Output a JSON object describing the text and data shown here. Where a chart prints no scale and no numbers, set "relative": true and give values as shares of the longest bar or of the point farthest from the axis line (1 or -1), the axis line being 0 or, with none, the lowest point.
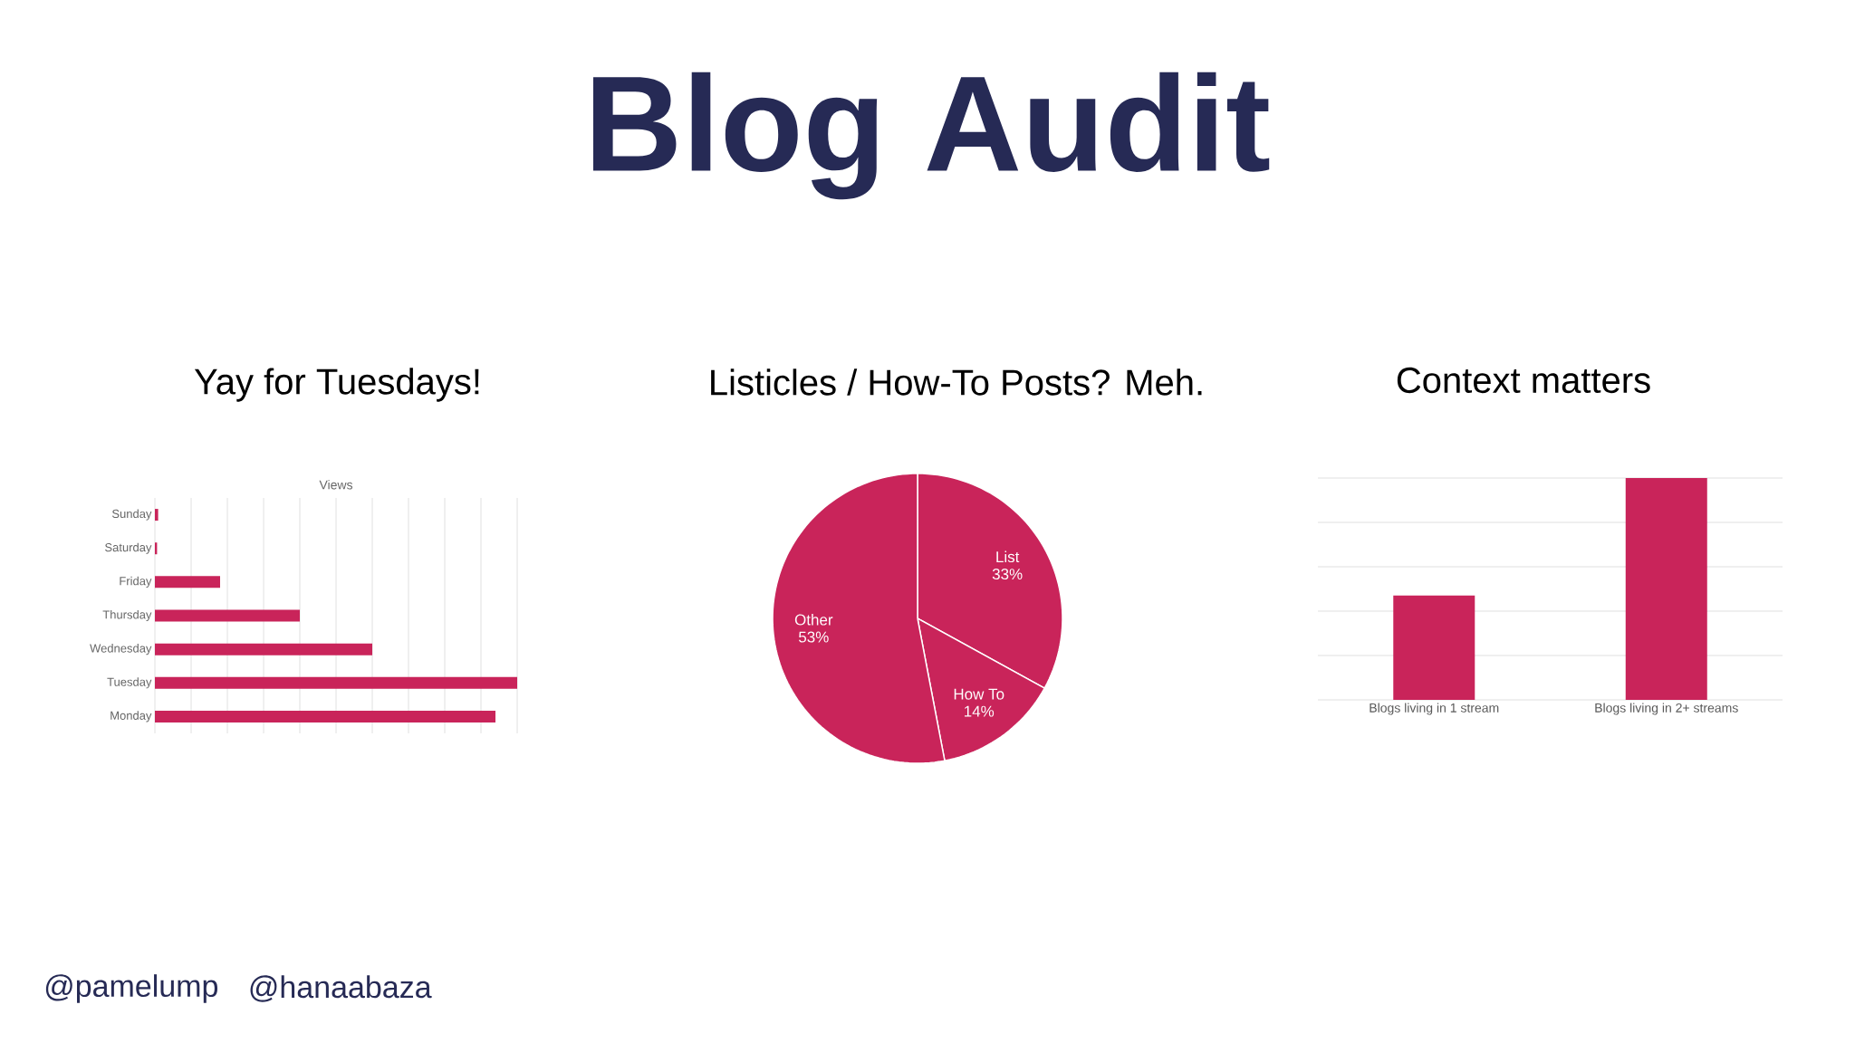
{
  "chart_data": [
    {
      "type": "other",
      "title": "Blog Audit",
      "annotations": [
        "@pamelump",
        "@hanaabaza"
      ]
    },
    {
      "type": "bar",
      "orientation": "horizontal",
      "relative": true,
      "title": "Yay for Tuesdays!",
      "xlabel": "Views",
      "categories": [
        "Sunday",
        "Saturday",
        "Friday",
        "Thursday",
        "Wednesday",
        "Tuesday",
        "Monday"
      ],
      "values": [
        0.009,
        0.006,
        0.18,
        0.4,
        0.6,
        1,
        0.94
      ],
      "color": "#c9245a",
      "grid": "x"
    },
    {
      "type": "pie",
      "title": "Listicles / How-To Posts? Meh.",
      "categories": [
        "List",
        "How To",
        "Other"
      ],
      "values": [
        33,
        14,
        53
      ],
      "value_labels": [
        "33%",
        "14%",
        "53%"
      ],
      "colors": [
        "#c9245a",
        "#c9245a",
        "#c9245a"
      ]
    },
    {
      "type": "bar",
      "relative": true,
      "title": "Context matters",
      "categories": [
        "Blogs living in 1 stream",
        "Blogs living in 2+ streams"
      ],
      "values": [
        0.47,
        1
      ],
      "color": "#c9245a",
      "grid": "y"
    }
  ]
}
